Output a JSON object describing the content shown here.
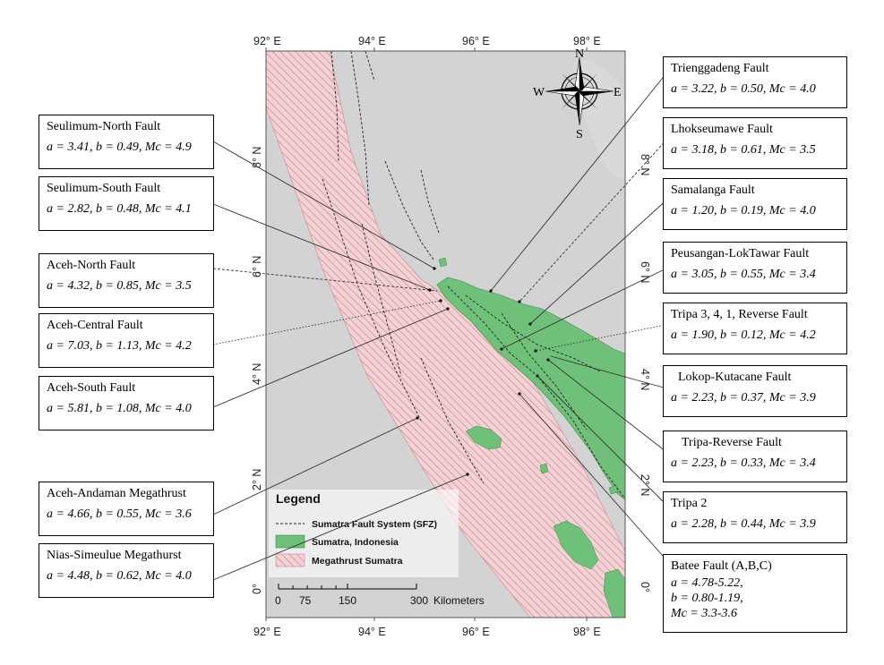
{
  "axis_labels": {
    "top": [
      "92° E",
      "94° E",
      "96° E",
      "98° E"
    ],
    "bottom": [
      "92° E",
      "94° E",
      "96° E",
      "98° E"
    ],
    "left": [
      "8° N",
      "6° N",
      "4° N",
      "2° N",
      "0°"
    ],
    "right": [
      "8° N",
      "6° N",
      "4° N",
      "2° N",
      "0°"
    ]
  },
  "compass": {
    "n": "N",
    "s": "S",
    "e": "E",
    "w": "W"
  },
  "legend": {
    "title": "Legend",
    "items": [
      "Sumatra Fault System (SFZ)",
      "Sumatra, Indonesia",
      "Megathrust Sumatra"
    ]
  },
  "scale_bar": {
    "ticks": [
      "0",
      "75",
      "150",
      "300"
    ],
    "unit": "Kilometers"
  },
  "colors": {
    "land": "#6fc17a",
    "megathrust_hatch": "#d58f96",
    "megathrust_fill": "#f2d2d5",
    "sea": "#d3d3d3"
  },
  "left_boxes": [
    {
      "title": "Seulimum-North Fault",
      "params": "a = 3.41, b = 0.49, Mc = 4.9"
    },
    {
      "title": "Seulimum-South Fault",
      "params": "a = 2.82, b = 0.48, Mc = 4.1"
    },
    {
      "title": "Aceh-North Fault",
      "params": "a = 4.32, b = 0.85, Mc = 3.5"
    },
    {
      "title": "Aceh-Central Fault",
      "params": "a = 7.03, b = 1.13, Mc = 4.2"
    },
    {
      "title": "Aceh-South Fault",
      "params": "a =  5.81, b = 1.08, Mc = 4.0"
    },
    {
      "title": "Aceh-Andaman Megathrust",
      "params": "a =  4.66, b = 0.55, Mc = 3.6"
    },
    {
      "title": "Nias-Simeulue Megathurst",
      "params": "a = 4.48, b = 0.62, Mc = 4.0"
    }
  ],
  "right_boxes": [
    {
      "title": "Trienggadeng Fault",
      "params": "a = 3.22, b = 0.50, Mc = 4.0"
    },
    {
      "title": "Lhokseumawe Fault",
      "params": "a = 3.18, b = 0.61, Mc = 3.5"
    },
    {
      "title": "Samalanga Fault",
      "params": "a = 1.20, b = 0.19, Mc = 4.0"
    },
    {
      "title": "Peusangan-LokTawar Fault",
      "params": "a =  3.05, b = 0.55, Mc = 3.4"
    },
    {
      "title": "Tripa 3, 4, 1, Reverse Fault",
      "params": "a =  1.90, b = 0.12, Mc = 4.2"
    },
    {
      "title": "Lokop-Kutacane Fault",
      "params": "a = 2.23, b = 0.37, Mc = 3.9"
    },
    {
      "title": "Tripa-Reverse Fault",
      "params": "a = 2.23, b = 0.33, Mc = 3.4"
    },
    {
      "title": "Tripa 2",
      "params": "a = 2.28, b = 0.44, Mc = 3.9"
    },
    {
      "title": "Batee Fault (A,B,C)",
      "params_lines": [
        "a = 4.78-5.22,",
        "b = 0.80-1.19,",
        "Mc = 3.3-3.6"
      ]
    }
  ]
}
